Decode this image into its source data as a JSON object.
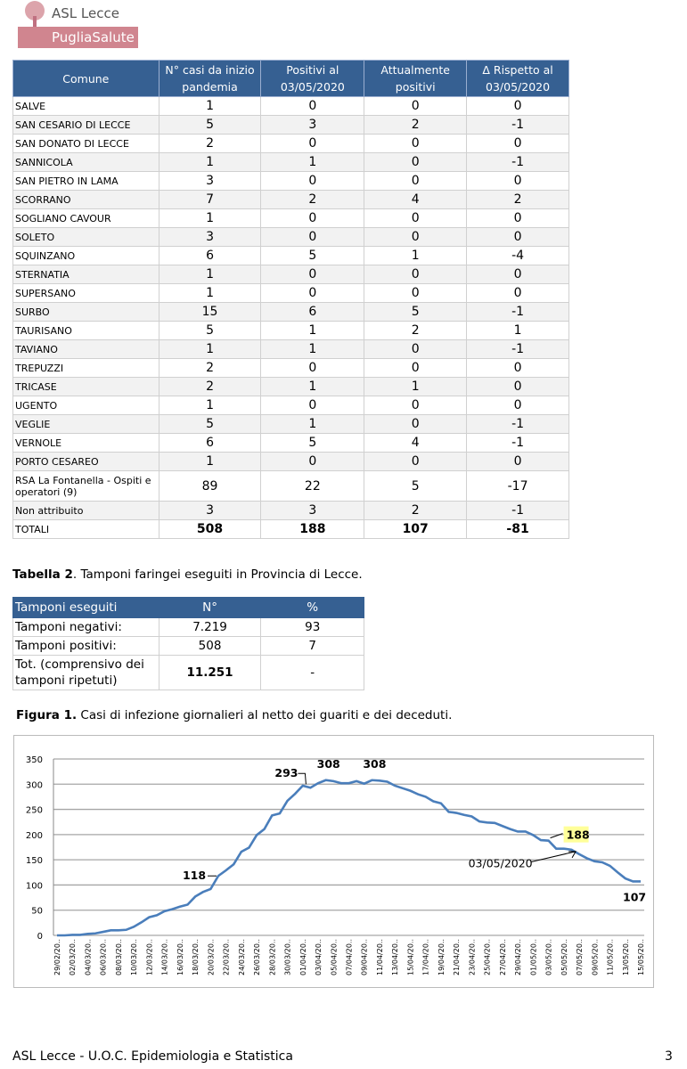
{
  "header": {
    "org": "ASL Lecce",
    "brand": "PugliaSalute"
  },
  "table1": {
    "columns": [
      "Comune",
      "N° casi da inizio pandemia",
      "Positivi al 03/05/2020",
      "Attualmente positivi",
      "Δ Rispetto al 03/05/2020"
    ],
    "rows": [
      [
        "SALVE",
        "1",
        "0",
        "0",
        "0"
      ],
      [
        "SAN CESARIO DI LECCE",
        "5",
        "3",
        "2",
        "-1"
      ],
      [
        "SAN DONATO DI LECCE",
        "2",
        "0",
        "0",
        "0"
      ],
      [
        "SANNICOLA",
        "1",
        "1",
        "0",
        "-1"
      ],
      [
        "SAN PIETRO IN LAMA",
        "3",
        "0",
        "0",
        "0"
      ],
      [
        "SCORRANO",
        "7",
        "2",
        "4",
        "2"
      ],
      [
        "SOGLIANO CAVOUR",
        "1",
        "0",
        "0",
        "0"
      ],
      [
        "SOLETO",
        "3",
        "0",
        "0",
        "0"
      ],
      [
        "SQUINZANO",
        "6",
        "5",
        "1",
        "-4"
      ],
      [
        "STERNATIA",
        "1",
        "0",
        "0",
        "0"
      ],
      [
        "SUPERSANO",
        "1",
        "0",
        "0",
        "0"
      ],
      [
        "SURBO",
        "15",
        "6",
        "5",
        "-1"
      ],
      [
        "TAURISANO",
        "5",
        "1",
        "2",
        "1"
      ],
      [
        "TAVIANO",
        "1",
        "1",
        "0",
        "-1"
      ],
      [
        "TREPUZZI",
        "2",
        "0",
        "0",
        "0"
      ],
      [
        "TRICASE",
        "2",
        "1",
        "1",
        "0"
      ],
      [
        "UGENTO",
        "1",
        "0",
        "0",
        "0"
      ],
      [
        "VEGLIE",
        "5",
        "1",
        "0",
        "-1"
      ],
      [
        "VERNOLE",
        "6",
        "5",
        "4",
        "-1"
      ],
      [
        "PORTO CESAREO",
        "1",
        "0",
        "0",
        "0"
      ],
      [
        "RSA La Fontanella - Ospiti e operatori (9)",
        "89",
        "22",
        "5",
        "-17"
      ],
      [
        "Non attribuito",
        "3",
        "3",
        "2",
        "-1"
      ]
    ],
    "totals": [
      "TOTALI",
      "508",
      "188",
      "107",
      "-81"
    ]
  },
  "table2": {
    "caption_bold": "Tabella 2",
    "caption": ". Tamponi faringei eseguiti in Provincia di Lecce.",
    "columns": [
      "Tamponi eseguiti",
      "N°",
      "%"
    ],
    "rows": [
      [
        "Tamponi negativi:",
        "7.219",
        "93"
      ],
      [
        "Tamponi positivi:",
        "508",
        "7"
      ],
      [
        "Tot. (comprensivo dei tamponi ripetuti)",
        "11.251",
        "-"
      ]
    ]
  },
  "figure": {
    "caption_bold": "Figura 1.",
    "caption": " Casi di infezione giornalieri al netto dei guariti e dei deceduti."
  },
  "chart_data": {
    "type": "line",
    "title": "",
    "xlabel": "",
    "ylabel": "",
    "ylim": [
      0,
      350
    ],
    "yticks": [
      0,
      50,
      100,
      150,
      200,
      250,
      300,
      350
    ],
    "grid": true,
    "line_color": "#4a7ebb",
    "x_start": "29/02/2020",
    "x_end": "15/05/2020",
    "xtick_labels": [
      "29/02/20..",
      "02/03/20..",
      "04/03/20..",
      "06/03/20..",
      "08/03/20..",
      "10/03/20..",
      "12/03/20..",
      "14/03/20..",
      "16/03/20..",
      "18/03/20..",
      "20/03/20..",
      "22/03/20..",
      "24/03/20..",
      "26/03/20..",
      "28/03/20..",
      "30/03/20..",
      "01/04/20..",
      "03/04/20..",
      "05/04/20..",
      "07/04/20..",
      "09/04/20..",
      "11/04/20..",
      "13/04/20..",
      "15/04/20..",
      "17/04/20..",
      "19/04/20..",
      "21/04/20..",
      "23/04/20..",
      "25/04/20..",
      "27/04/20..",
      "29/04/20..",
      "01/05/20..",
      "03/05/20..",
      "05/05/20..",
      "07/05/20..",
      "09/05/20..",
      "11/05/20..",
      "13/05/20..",
      "15/05/20.."
    ],
    "values": [
      0,
      0,
      1,
      1,
      3,
      4,
      7,
      10,
      10,
      11,
      17,
      26,
      36,
      40,
      48,
      52,
      57,
      61,
      77,
      86,
      92,
      118,
      129,
      141,
      166,
      174,
      199,
      211,
      238,
      242,
      267,
      281,
      297,
      293,
      302,
      308,
      306,
      302,
      302,
      306,
      301,
      308,
      307,
      305,
      297,
      292,
      287,
      280,
      275,
      266,
      262,
      245,
      243,
      239,
      236,
      226,
      224,
      223,
      217,
      211,
      206,
      206,
      199,
      189,
      188,
      172,
      172,
      170,
      161,
      153,
      147,
      145,
      138,
      125,
      113,
      107,
      107
    ],
    "annotations": [
      {
        "text": "118",
        "index": 21
      },
      {
        "text": "293",
        "index": 33
      },
      {
        "text": "308",
        "index": 35
      },
      {
        "text": "308",
        "index": 41
      },
      {
        "text": "188",
        "index": 64,
        "highlight": "#ffff99"
      },
      {
        "text": "03/05/2020",
        "index": 64
      },
      {
        "text": "107",
        "index": 76
      }
    ]
  },
  "footer": {
    "left": "ASL Lecce - U.O.C. Epidemiologia e Statistica",
    "page": "3"
  }
}
